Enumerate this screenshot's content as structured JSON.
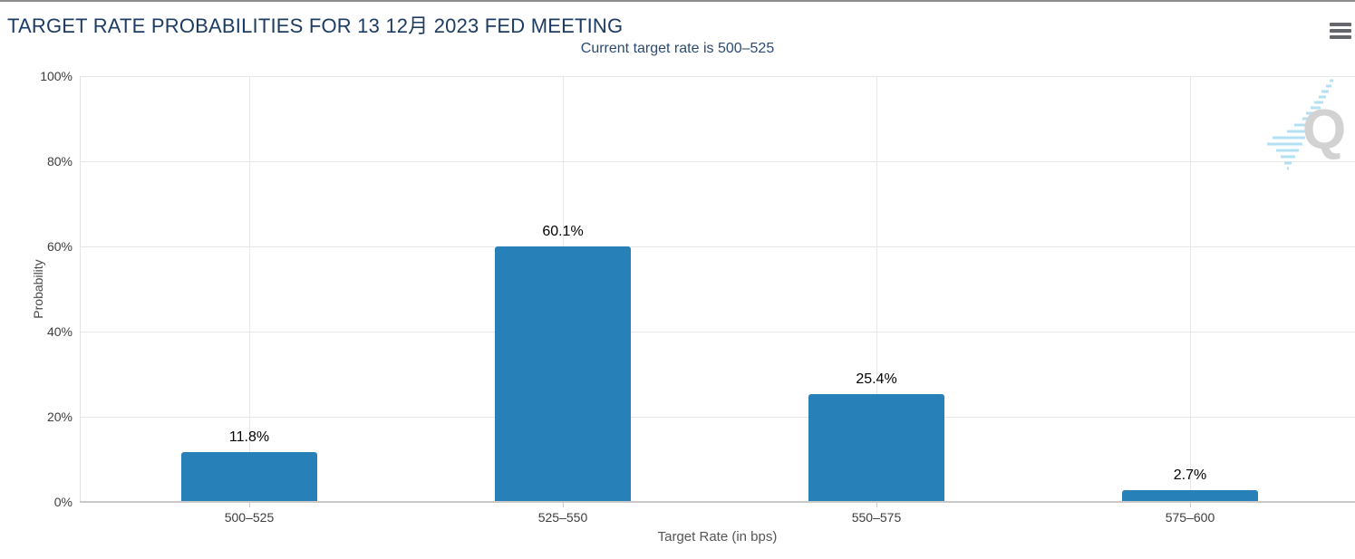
{
  "page": {
    "title": "TARGET RATE PROBABILITIES FOR 13 12月 2023 FED MEETING",
    "menu_icon": "hamburger-icon"
  },
  "colors": {
    "bar": "#2880b8",
    "title_text": "#1d3c63",
    "gridline": "#e7e7e7",
    "axis_line": "#c9c9c9",
    "watermark_dashes": "#b3e1f3",
    "watermark_letter": "#d2d2d2"
  },
  "watermark": {
    "letter": "Q"
  },
  "chart_data": {
    "type": "bar",
    "title": "TARGET RATE PROBABILITIES FOR 13 12月 2023 FED MEETING",
    "subtitle": "Current target rate is 500–525",
    "categories": [
      "500–525",
      "525–550",
      "550–575",
      "575–600"
    ],
    "values": [
      11.8,
      60.1,
      25.4,
      2.7
    ],
    "value_labels": [
      "11.8%",
      "60.1%",
      "25.4%",
      "2.7%"
    ],
    "xlabel": "Target Rate (in bps)",
    "ylabel": "Probability",
    "ylim": [
      0,
      100
    ],
    "yticks": [
      "0%",
      "20%",
      "40%",
      "60%",
      "80%",
      "100%"
    ],
    "grid": true,
    "legend": "none",
    "bar_color": "#2880b8"
  }
}
